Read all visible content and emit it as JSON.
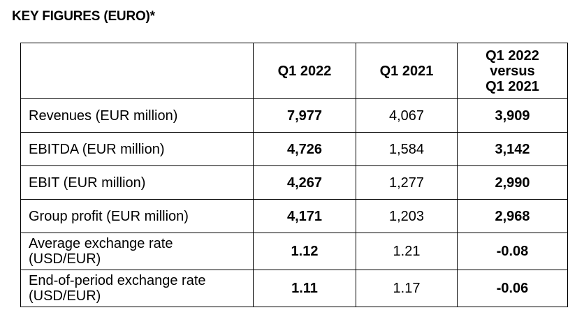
{
  "title": "KEY FIGURES (EURO)*",
  "table": {
    "headers": {
      "col0": "",
      "col1": "Q1 2022",
      "col2": "Q1 2021",
      "col3_lines": [
        "Q1 2022",
        "versus",
        "Q1 2021"
      ]
    },
    "rows": [
      {
        "label_lines": [
          "Revenues (EUR million)"
        ],
        "q1_2022": "7,977",
        "q1_2021": "4,067",
        "change": "3,909"
      },
      {
        "label_lines": [
          "EBITDA (EUR million)"
        ],
        "q1_2022": "4,726",
        "q1_2021": "1,584",
        "change": "3,142"
      },
      {
        "label_lines": [
          "EBIT (EUR million)"
        ],
        "q1_2022": "4,267",
        "q1_2021": "1,277",
        "change": "2,990"
      },
      {
        "label_lines": [
          "Group profit (EUR million)"
        ],
        "q1_2022": "4,171",
        "q1_2021": "1,203",
        "change": "2,968"
      },
      {
        "label_lines": [
          "Average exchange rate",
          "(USD/EUR)"
        ],
        "q1_2022": "1.12",
        "q1_2021": "1.21",
        "change": "-0.08"
      },
      {
        "label_lines": [
          "End-of-period exchange rate",
          "(USD/EUR)"
        ],
        "q1_2022": "1.11",
        "q1_2021": "1.17",
        "change": "-0.06"
      }
    ]
  }
}
